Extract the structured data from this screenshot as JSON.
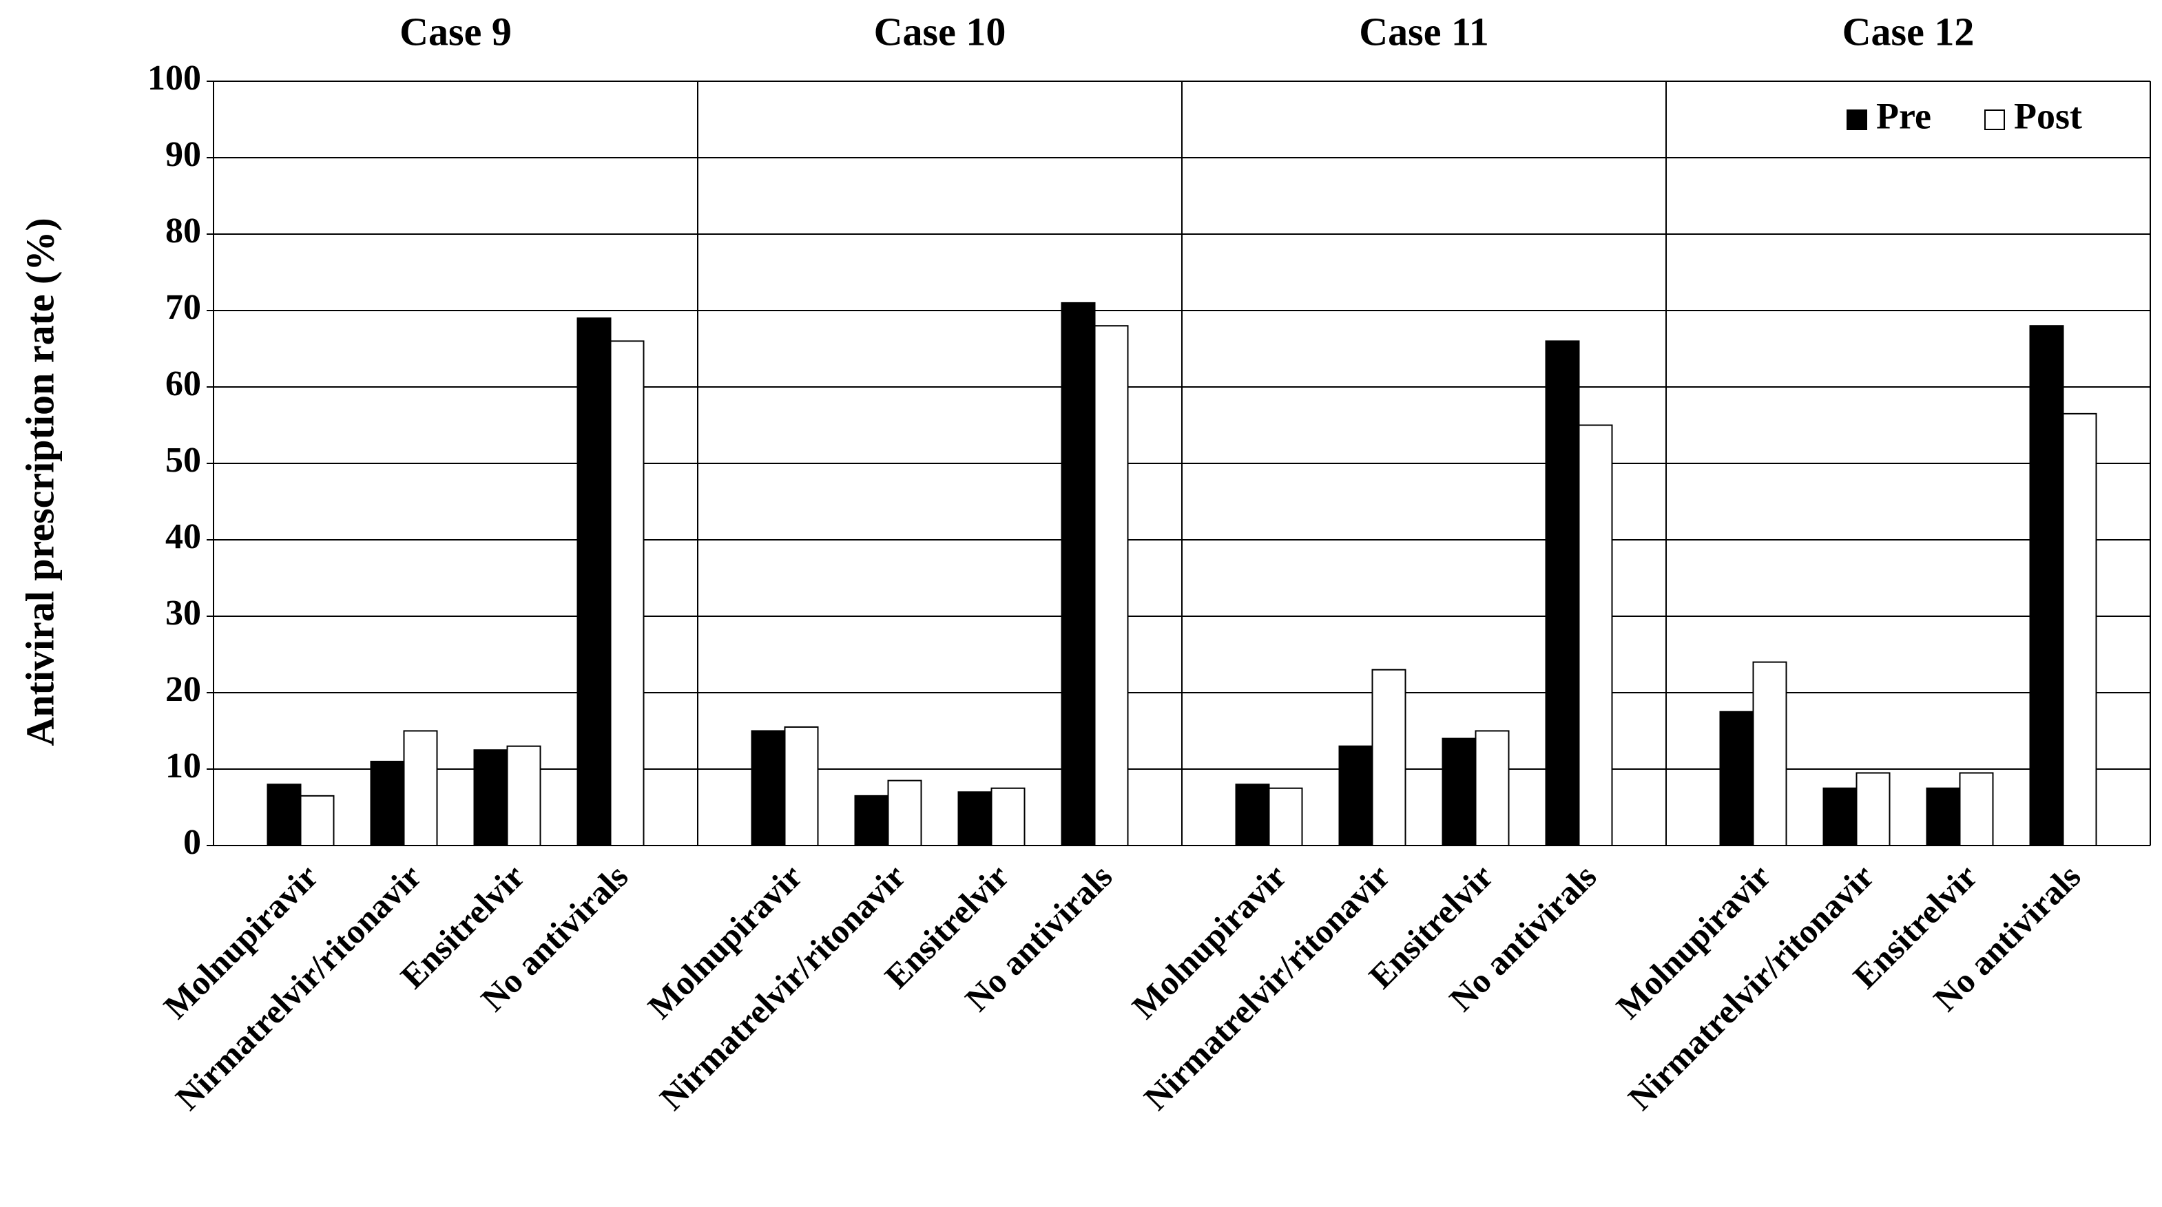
{
  "chart_data": {
    "type": "bar",
    "ylabel": "Antiviral prescription rate (%)",
    "ylim": [
      0,
      100
    ],
    "yticks": [
      0,
      10,
      20,
      30,
      40,
      50,
      60,
      70,
      80,
      90,
      100
    ],
    "grid": true,
    "legend": "upper right",
    "categories": [
      "Molnupiravir",
      "Nirmatrelvir/ritonavir",
      "Ensitrelvir",
      "No antivirals"
    ],
    "series": [
      {
        "name": "Pre",
        "color": "#000000"
      },
      {
        "name": "Post",
        "color": "#ffffff"
      }
    ],
    "panels": [
      {
        "title": "Case 9",
        "values": [
          [
            8,
            11,
            12.5,
            69
          ],
          [
            6.5,
            15,
            13,
            66
          ]
        ]
      },
      {
        "title": "Case 10",
        "values": [
          [
            15,
            6.5,
            7,
            71
          ],
          [
            15.5,
            8.5,
            7.5,
            68
          ]
        ]
      },
      {
        "title": "Case 11",
        "values": [
          [
            8,
            13,
            14,
            66
          ],
          [
            7.5,
            23,
            15,
            55
          ]
        ]
      },
      {
        "title": "Case 12",
        "values": [
          [
            17.5,
            7.5,
            7.5,
            68
          ],
          [
            24,
            9.5,
            9.5,
            56.5
          ]
        ]
      }
    ]
  }
}
